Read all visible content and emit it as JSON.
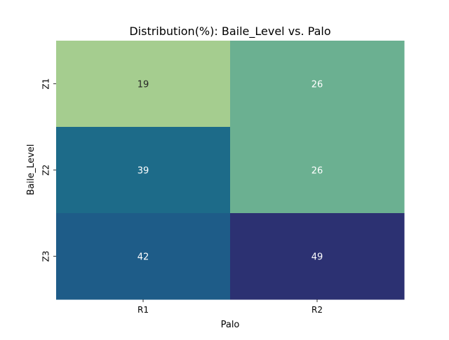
{
  "chart_data": {
    "type": "heatmap",
    "title": "Distribution(%): Baile_Level vs. Palo",
    "xlabel": "Palo",
    "ylabel": "Baile_Level",
    "x_categories": [
      "R1",
      "R2"
    ],
    "y_categories": [
      "Z1",
      "Z2",
      "Z3"
    ],
    "values": [
      [
        19,
        26
      ],
      [
        39,
        26
      ],
      [
        42,
        49
      ]
    ],
    "annotations": [
      [
        "19",
        "26"
      ],
      [
        "39",
        "26"
      ],
      [
        "42",
        "49"
      ]
    ],
    "colorscale": "crest",
    "cell_colors": [
      [
        "#a5cd8f",
        "#6bb091"
      ],
      [
        "#1d6b89",
        "#6bb091"
      ],
      [
        "#1e5c88",
        "#2c3172"
      ]
    ],
    "annotation_colors": [
      [
        "#262626",
        "#ffffff"
      ],
      [
        "#ffffff",
        "#ffffff"
      ],
      [
        "#ffffff",
        "#ffffff"
      ]
    ],
    "colorbar": false,
    "grid": false
  }
}
